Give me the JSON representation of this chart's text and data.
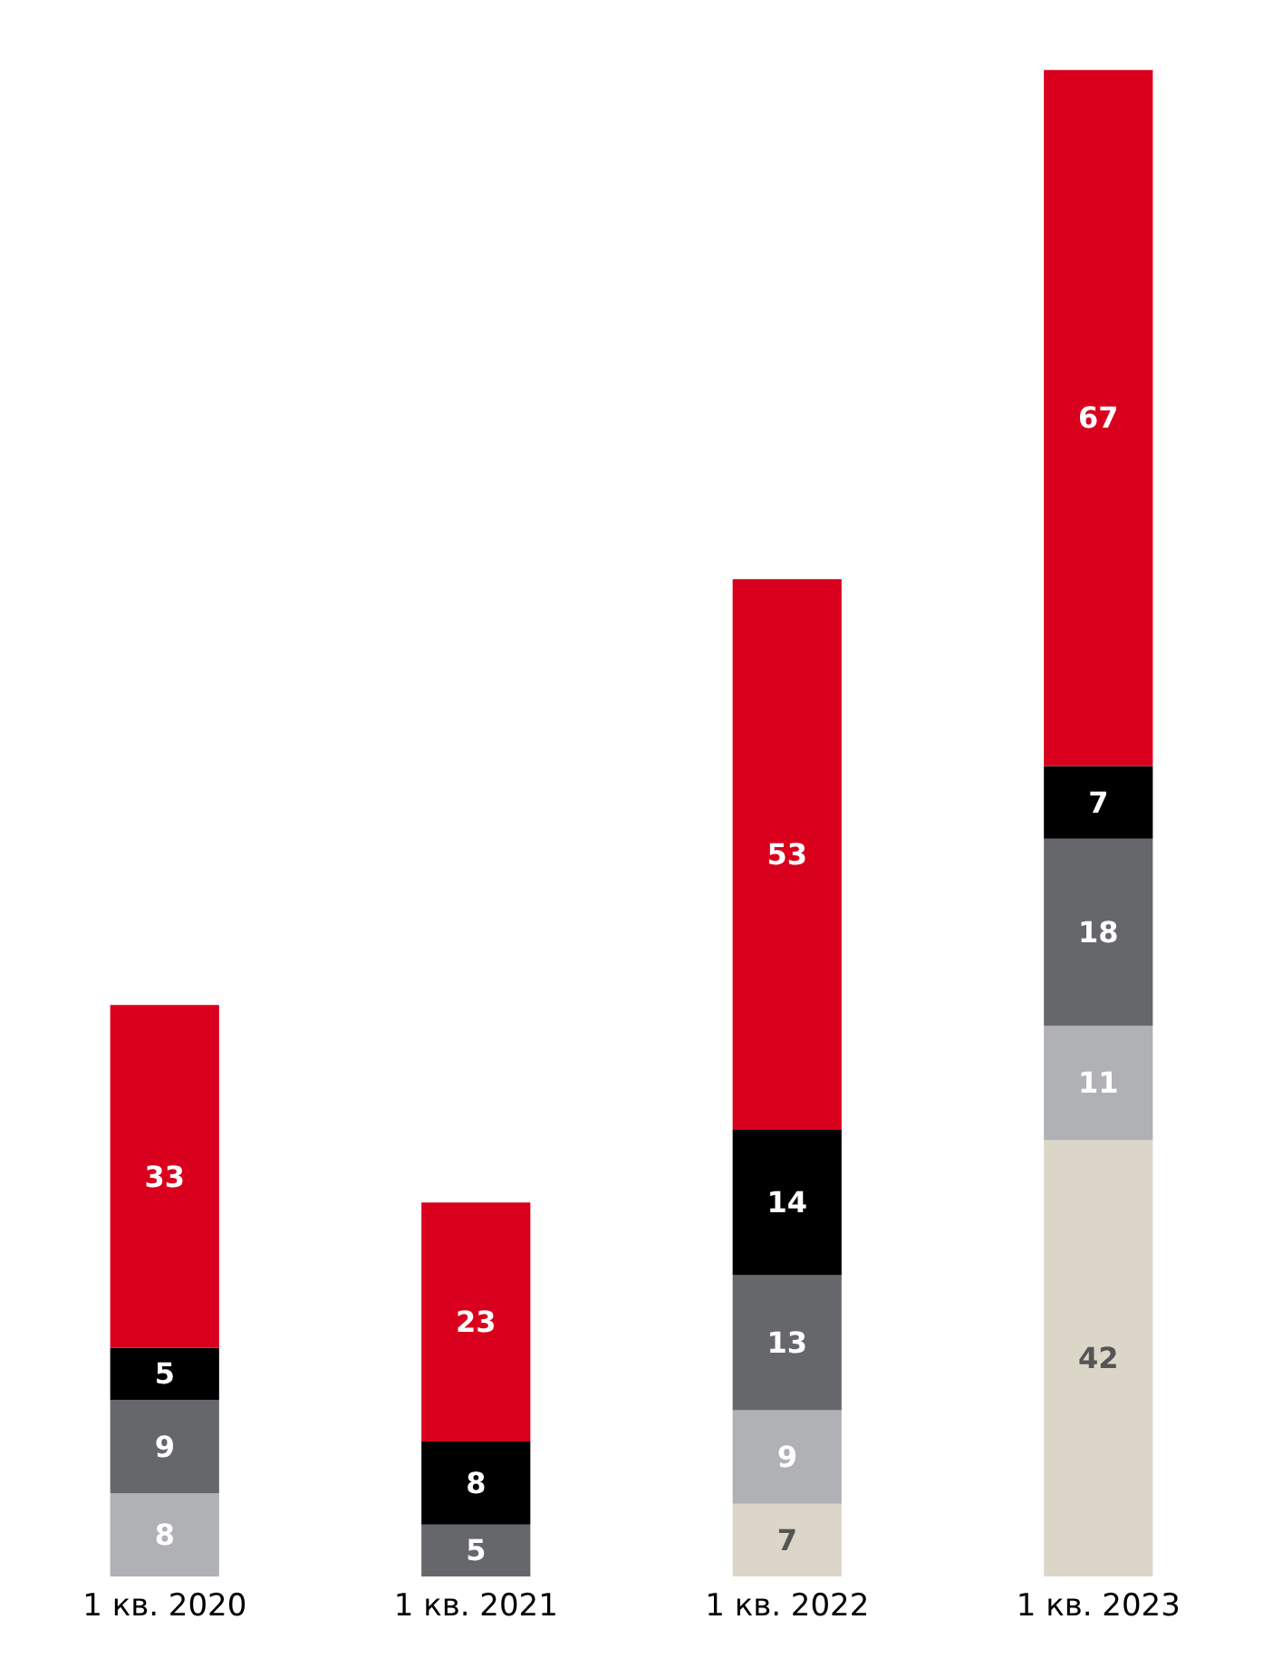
{
  "chart_data": {
    "type": "bar",
    "stacked": true,
    "data_labels": true,
    "tick_labels": "x",
    "categories": [
      "1 кв. 2020",
      "1 кв. 2021",
      "1 кв. 2022",
      "1 кв. 2023"
    ],
    "series": [
      {
        "color": "#dcd6c8",
        "values": [
          null,
          null,
          7,
          42
        ]
      },
      {
        "color": "#b0b1b4",
        "values": [
          8,
          null,
          9,
          11
        ]
      },
      {
        "color": "#66676b",
        "values": [
          9,
          5,
          13,
          18
        ]
      },
      {
        "color": "#000000",
        "values": [
          5,
          8,
          14,
          7
        ]
      },
      {
        "color": "#d9001e",
        "values": [
          33,
          23,
          53,
          67
        ]
      }
    ]
  }
}
